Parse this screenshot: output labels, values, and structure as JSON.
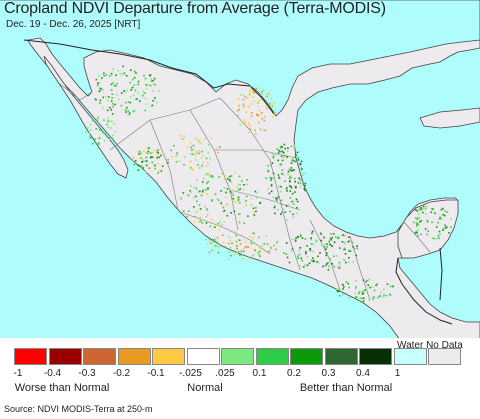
{
  "header": {
    "title": "Cropland NDVI Departure from Average (Terra-MODIS)",
    "dates": "Dec. 19 - Dec. 26, 2025 [NRT]"
  },
  "map": {
    "ocean_color": "#aefcfc",
    "land_color": "#eeebee"
  },
  "legend": {
    "nodata_label": "Water No Data",
    "swatches": [
      {
        "color": "#fe0000"
      },
      {
        "color": "#990000"
      },
      {
        "color": "#cc6633"
      },
      {
        "color": "#e89a22"
      },
      {
        "color": "#fec943"
      },
      {
        "color": "#ffffff"
      },
      {
        "color": "#7de882"
      },
      {
        "color": "#2ecc49"
      },
      {
        "color": "#0d9a0a"
      },
      {
        "color": "#306630"
      },
      {
        "color": "#062f06"
      },
      {
        "color": "#c8ffff"
      },
      {
        "color": "#eeebee"
      }
    ],
    "ticks": [
      "-1",
      "-0.4",
      "-0.3",
      "-0.2",
      "-0.1",
      "-.025",
      ".025",
      "0.1",
      "0.2",
      "0.3",
      "0.4",
      "1"
    ],
    "groups": {
      "worse": "Worse than Normal",
      "normal": "Normal",
      "better": "Better than Normal"
    }
  },
  "footer": {
    "source": "Source: NDVI MODIS-Terra at 250-m"
  }
}
